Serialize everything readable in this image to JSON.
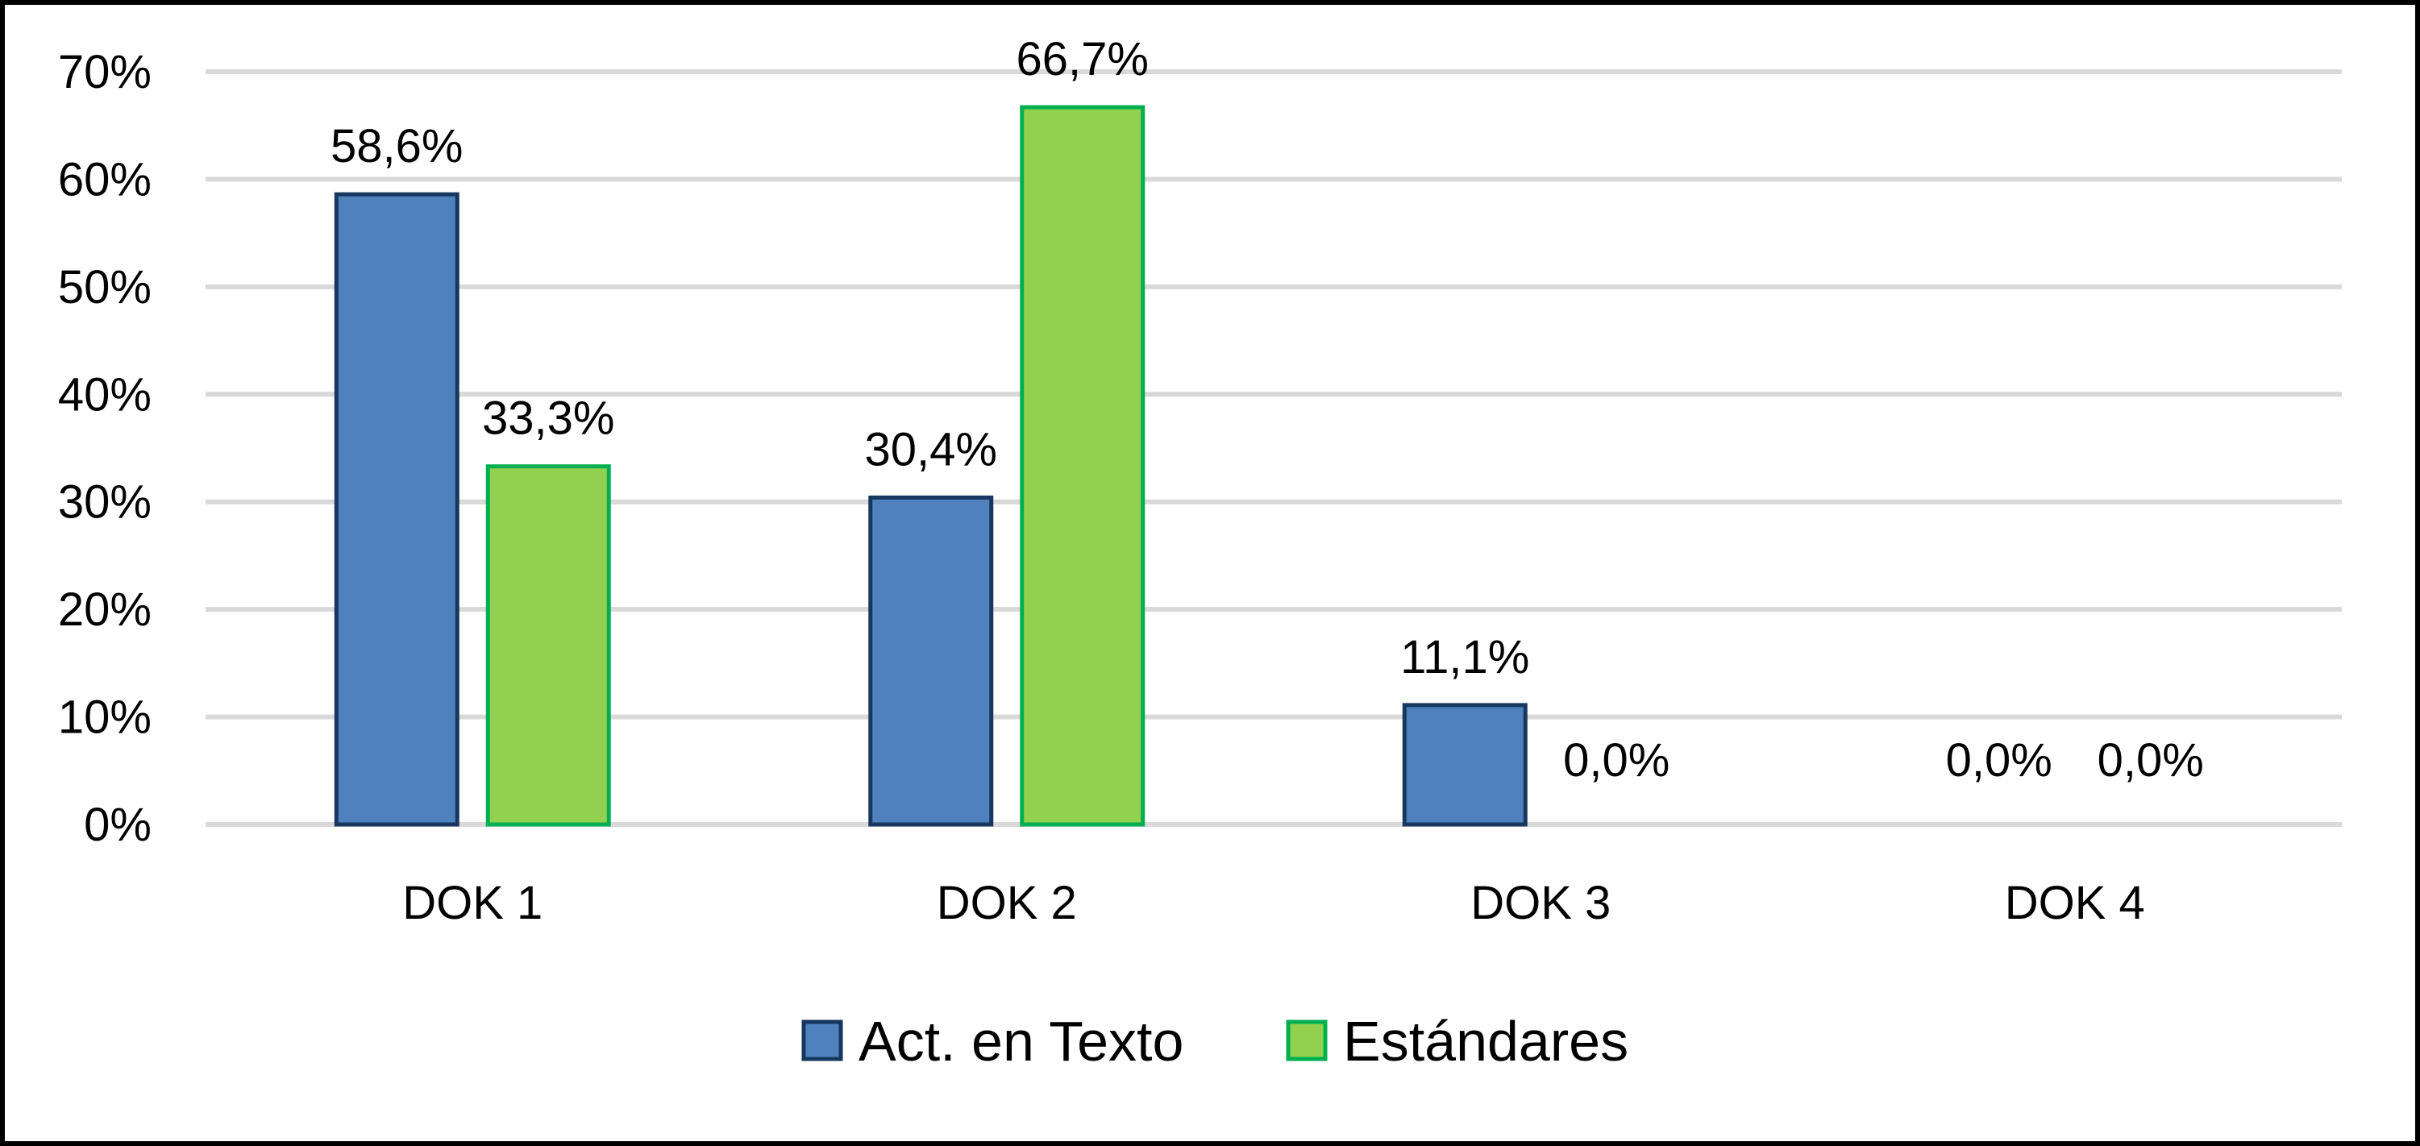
{
  "chart_data": {
    "type": "bar",
    "categories": [
      "DOK 1",
      "DOK 2",
      "DOK 3",
      "DOK 4"
    ],
    "series": [
      {
        "name": "Act. en Texto",
        "values": [
          58.6,
          30.4,
          11.1,
          0.0
        ],
        "labels": [
          "58,6%",
          "30,4%",
          "11,1%",
          "0,0%"
        ],
        "color": "#4F81BD",
        "stroke": "#17375E"
      },
      {
        "name": "Estándares",
        "values": [
          33.3,
          66.7,
          0.0,
          0.0
        ],
        "labels": [
          "33,3%",
          "66,7%",
          "0,0%",
          "0,0%"
        ],
        "color": "#92D050",
        "stroke": "#00B050"
      }
    ],
    "y_ticks": [
      "0%",
      "10%",
      "20%",
      "30%",
      "40%",
      "50%",
      "60%",
      "70%"
    ],
    "ylim": [
      0,
      70
    ],
    "grid": true,
    "legend_position": "bottom",
    "title": "",
    "xlabel": "",
    "ylabel": ""
  }
}
